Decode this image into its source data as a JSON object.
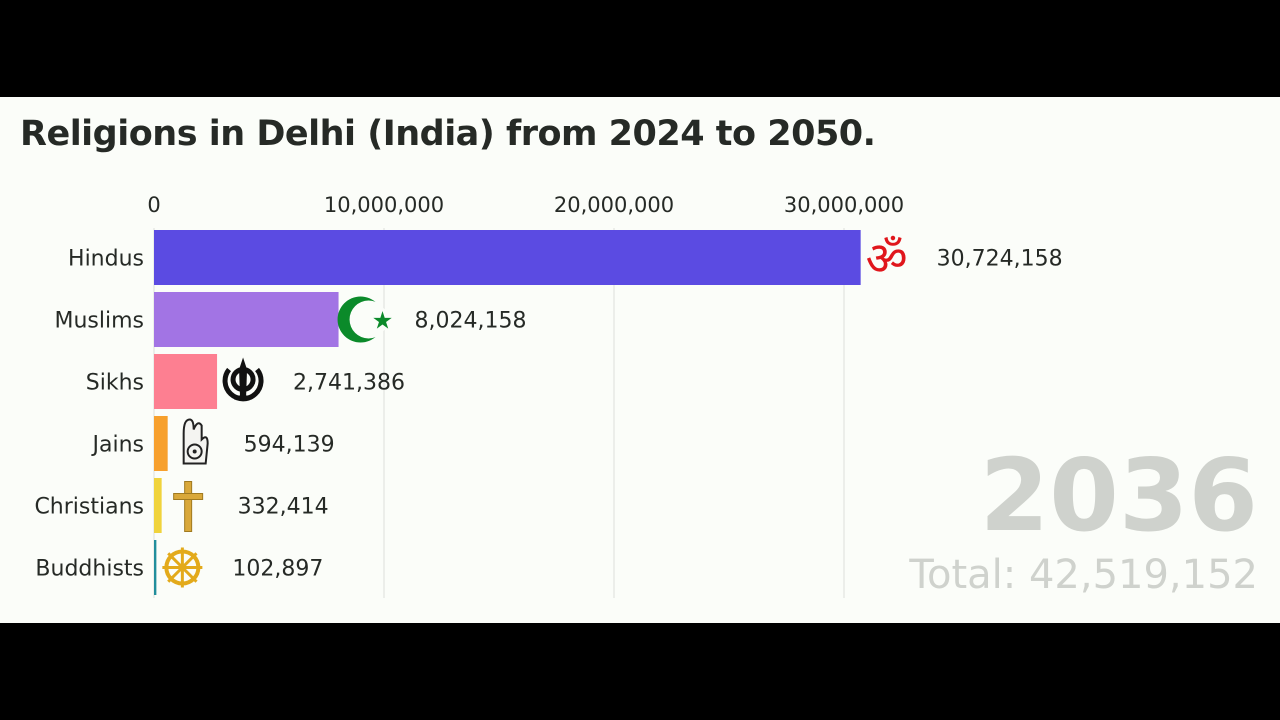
{
  "title": "Religions in Delhi (India) from 2024 to 2050.",
  "year": "2036",
  "total_label": "Total: 42,519,152",
  "chart_data": {
    "type": "bar",
    "orientation": "horizontal",
    "title": "Religions in Delhi (India) from 2024 to 2050.",
    "xlim": [
      0,
      32600000
    ],
    "x_ticks": [
      0,
      10000000,
      20000000,
      30000000
    ],
    "x_tick_labels": [
      "0",
      "10,000,000",
      "20,000,000",
      "30,000,000"
    ],
    "grid": true,
    "categories": [
      "Hindus",
      "Muslims",
      "Sikhs",
      "Jains",
      "Christians",
      "Buddhists"
    ],
    "values": [
      30724158,
      8024158,
      2741386,
      594139,
      332414,
      102897
    ],
    "value_labels": [
      "30,724,158",
      "8,024,158",
      "2,741,386",
      "594,139",
      "332,414",
      "102,897"
    ],
    "colors": [
      "#5b4be2",
      "#a274e4",
      "#fd7f91",
      "#f7a02d",
      "#f0d33c",
      "#218e9c"
    ],
    "icons": [
      "om-icon",
      "crescent-star-icon",
      "khanda-icon",
      "jain-hand-icon",
      "cross-icon",
      "dharma-wheel-icon"
    ]
  }
}
